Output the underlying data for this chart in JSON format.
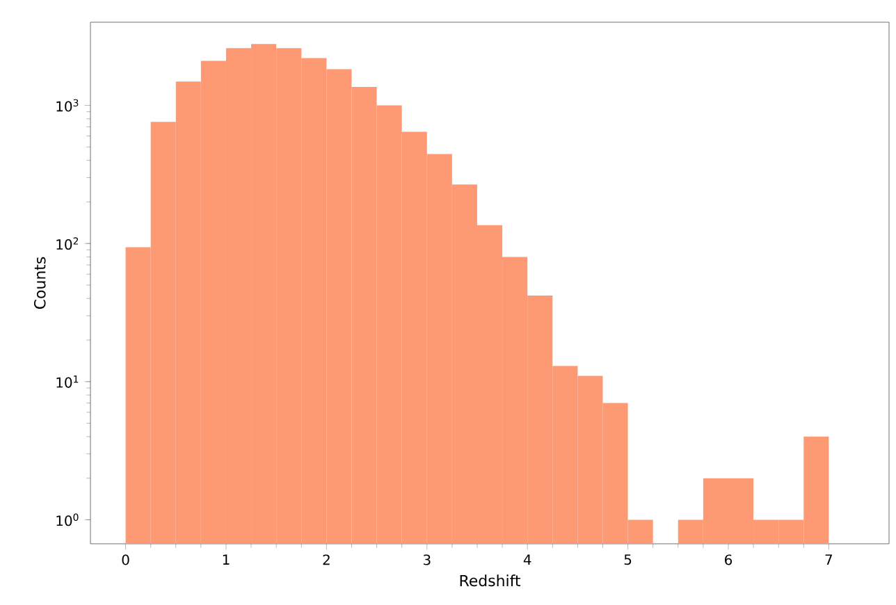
{
  "chart_data": {
    "type": "histogram",
    "xlabel": "Redshift",
    "ylabel": "Counts",
    "color": "#fd9a74",
    "bins": [
      0,
      0.25,
      0.5,
      0.75,
      1,
      1.25,
      1.5,
      1.75,
      2,
      2.25,
      2.5,
      2.75,
      3,
      3.25,
      3.5,
      3.75,
      4,
      4.25,
      4.5,
      4.75,
      5,
      5.25,
      5.5,
      5.75,
      6,
      6.25,
      6.5,
      6.75,
      7
    ],
    "values": [
      94,
      760,
      1490,
      2100,
      2600,
      2780,
      2600,
      2200,
      1830,
      1360,
      1000,
      645,
      445,
      268,
      136,
      80,
      42,
      13,
      11,
      7,
      1,
      null,
      1,
      2,
      2,
      1,
      1,
      4
    ],
    "log": "y",
    "xlim": [
      -0.35,
      7.6
    ],
    "ylim": [
      0.67,
      4000
    ],
    "xticks": [
      0,
      1,
      2,
      3,
      4,
      5,
      6,
      7
    ],
    "yticks": [
      {
        "value": 1,
        "label": "10$^{0}$"
      },
      {
        "value": 10,
        "label": "10$^{1}$"
      },
      {
        "value": 100,
        "label": "10$^{2}$"
      },
      {
        "value": 1000,
        "label": "10$^{3}$"
      }
    ],
    "grid": false
  }
}
